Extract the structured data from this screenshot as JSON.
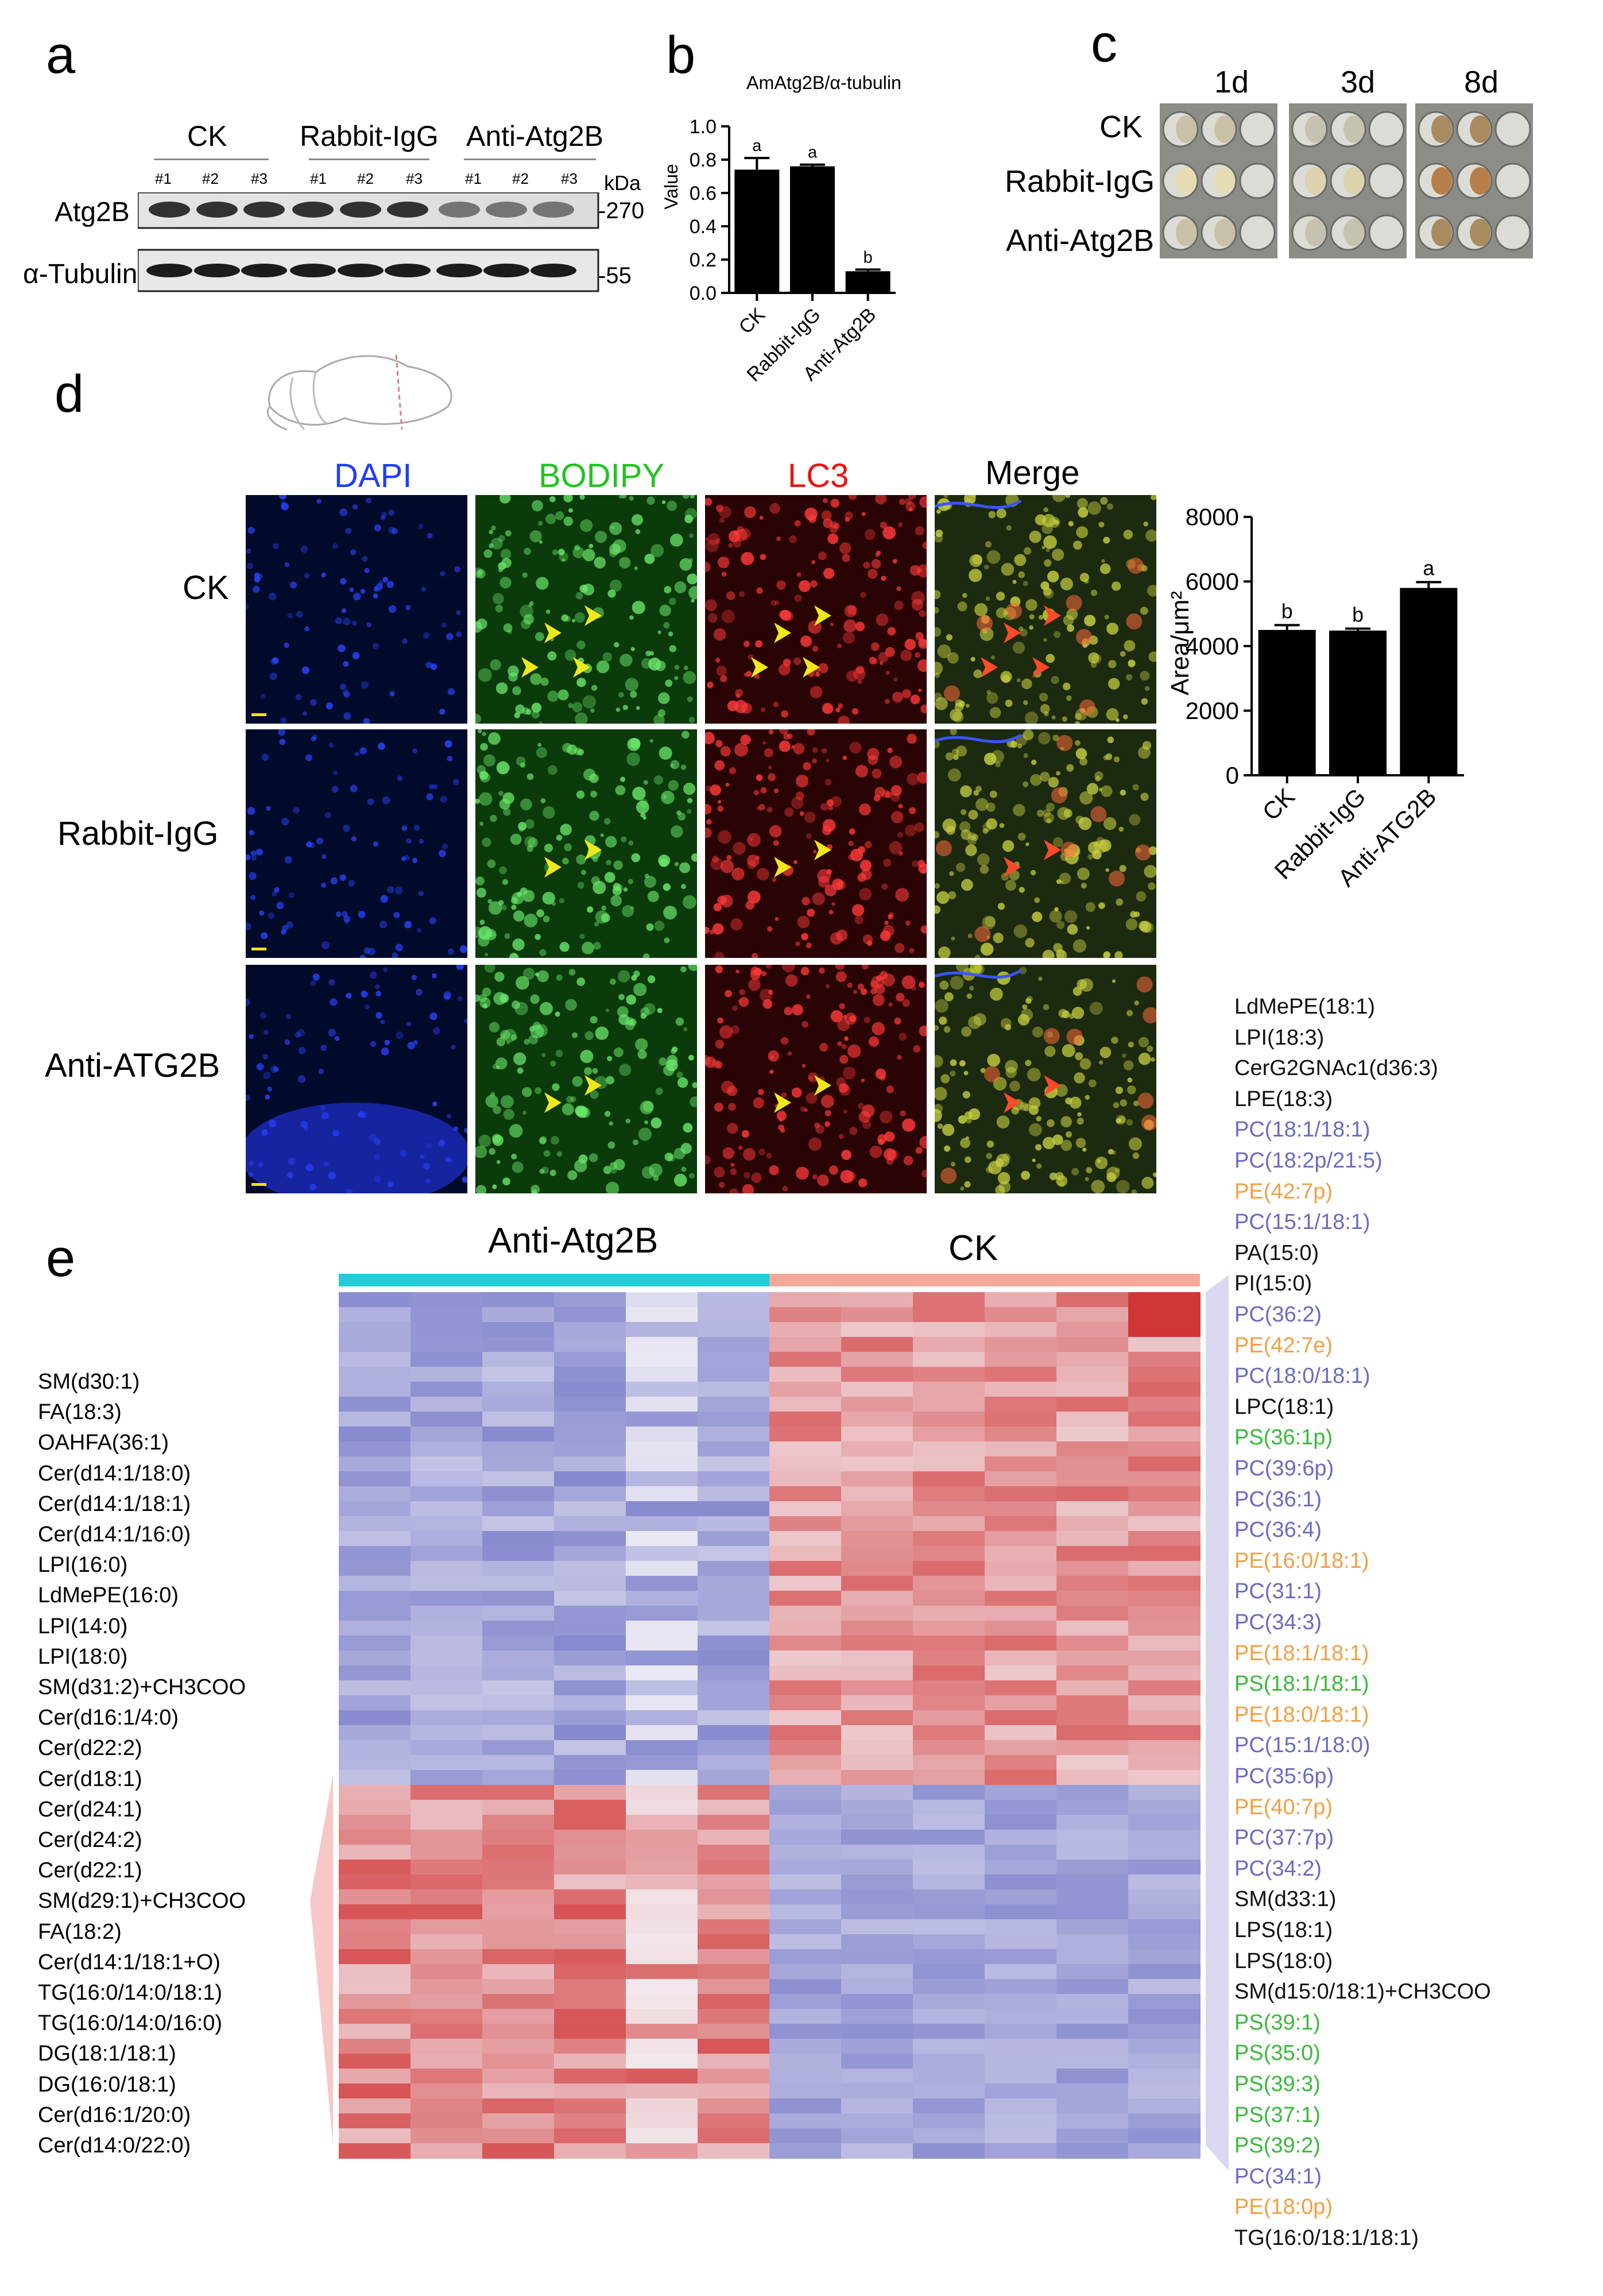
{
  "panels": {
    "a": "a",
    "b": "b",
    "c": "c",
    "d": "d",
    "e": "e"
  },
  "panel_a": {
    "groups": [
      "CK",
      "Rabbit-IgG",
      "Anti-Atg2B"
    ],
    "lanes": [
      "#1",
      "#2",
      "#3",
      "#1",
      "#2",
      "#3",
      "#1",
      "#2",
      "#3"
    ],
    "kda_label": "kDa",
    "rows": [
      {
        "label": "Atg2B",
        "marker": "-270"
      },
      {
        "label": "α-Tubulin",
        "marker": "-55"
      }
    ]
  },
  "chart_data": [
    {
      "type": "bar",
      "title": "AmAtg2B/α-tubulin",
      "ylabel": "Value",
      "xlabel": "",
      "categories": [
        "CK",
        "Rabbit-IgG",
        "Anti-Atg2B"
      ],
      "values": [
        0.74,
        0.76,
        0.13
      ],
      "errors": [
        0.07,
        0.01,
        0.01
      ],
      "significance": [
        "a",
        "a",
        "b"
      ],
      "ylim": [
        0,
        1.0
      ],
      "yticks": [
        "0.0",
        "0.2",
        "0.4",
        "0.6",
        "0.8",
        "1.0"
      ]
    },
    {
      "type": "bar",
      "title": "",
      "ylabel": "Area/μm²",
      "xlabel": "",
      "categories": [
        "CK",
        "Rabbit-IgG",
        "Anti-ATG2B"
      ],
      "values": [
        4500,
        4480,
        5800
      ],
      "errors": [
        150,
        60,
        180
      ],
      "significance": [
        "b",
        "b",
        "a"
      ],
      "ylim": [
        0,
        8000
      ],
      "yticks": [
        "0",
        "2000",
        "4000",
        "6000",
        "8000"
      ]
    },
    {
      "type": "heatmap",
      "title": "",
      "column_groups": [
        "Anti-Atg2B",
        "CK"
      ],
      "columns_per_group": 6,
      "left_labels": [
        "SM(d30:1)",
        "FA(18:3)",
        "OAHFA(36:1)",
        "Cer(d14:1/18:0)",
        "Cer(d14:1/18:1)",
        "Cer(d14:1/16:0)",
        "LPI(16:0)",
        "LdMePE(16:0)",
        "LPI(14:0)",
        "LPI(18:0)",
        "SM(d31:2)+CH3COO",
        "Cer(d16:1/4:0)",
        "Cer(d22:2)",
        "Cer(d18:1)",
        "Cer(d24:1)",
        "Cer(d24:2)",
        "Cer(d22:1)",
        "SM(d29:1)+CH3COO",
        "FA(18:2)",
        "Cer(d14:1/18:1+O)",
        "TG(16:0/14:0/18:1)",
        "TG(16:0/14:0/16:0)",
        "DG(18:1/18:1)",
        "DG(16:0/18:1)",
        "Cer(d16:1/20:0)",
        "Cer(d14:0/22:0)"
      ],
      "right_labels": [
        {
          "text": "LdMePE(18:1)",
          "color": "#111111"
        },
        {
          "text": "LPI(18:3)",
          "color": "#111111"
        },
        {
          "text": "CerG2GNAc1(d36:3)",
          "color": "#111111"
        },
        {
          "text": "LPE(18:3)",
          "color": "#111111"
        },
        {
          "text": "PC(18:1/18:1)",
          "color": "#6b6bc0"
        },
        {
          "text": "PC(18:2p/21:5)",
          "color": "#6b6bc0"
        },
        {
          "text": "PE(42:7p)",
          "color": "#f0a045"
        },
        {
          "text": "PC(15:1/18:1)",
          "color": "#6b6bc0"
        },
        {
          "text": "PA(15:0)",
          "color": "#111111"
        },
        {
          "text": "PI(15:0)",
          "color": "#111111"
        },
        {
          "text": "PC(36:2)",
          "color": "#6b6bc0"
        },
        {
          "text": "PE(42:7e)",
          "color": "#f0a045"
        },
        {
          "text": "PC(18:0/18:1)",
          "color": "#6b6bc0"
        },
        {
          "text": "LPC(18:1)",
          "color": "#111111"
        },
        {
          "text": "PS(36:1p)",
          "color": "#3cb83c"
        },
        {
          "text": "PC(39:6p)",
          "color": "#6b6bc0"
        },
        {
          "text": "PC(36:1)",
          "color": "#6b6bc0"
        },
        {
          "text": "PC(36:4)",
          "color": "#6b6bc0"
        },
        {
          "text": "PE(16:0/18:1)",
          "color": "#f0a045"
        },
        {
          "text": "PC(31:1)",
          "color": "#6b6bc0"
        },
        {
          "text": "PC(34:3)",
          "color": "#6b6bc0"
        },
        {
          "text": "PE(18:1/18:1)",
          "color": "#f0a045"
        },
        {
          "text": "PS(18:1/18:1)",
          "color": "#3cb83c"
        },
        {
          "text": "PE(18:0/18:1)",
          "color": "#f0a045"
        },
        {
          "text": "PC(15:1/18:0)",
          "color": "#6b6bc0"
        },
        {
          "text": "PC(35:6p)",
          "color": "#6b6bc0"
        },
        {
          "text": "PE(40:7p)",
          "color": "#f0a045"
        },
        {
          "text": "PC(37:7p)",
          "color": "#6b6bc0"
        },
        {
          "text": "PC(34:2)",
          "color": "#6b6bc0"
        },
        {
          "text": "SM(d33:1)",
          "color": "#111111"
        },
        {
          "text": "LPS(18:1)",
          "color": "#111111"
        },
        {
          "text": "LPS(18:0)",
          "color": "#111111"
        },
        {
          "text": "SM(d15:0/18:1)+CH3COO",
          "color": "#111111"
        },
        {
          "text": "PS(39:1)",
          "color": "#3cb83c"
        },
        {
          "text": "PS(35:0)",
          "color": "#3cb83c"
        },
        {
          "text": "PS(39:3)",
          "color": "#3cb83c"
        },
        {
          "text": "PS(37:1)",
          "color": "#3cb83c"
        },
        {
          "text": "PS(39:2)",
          "color": "#3cb83c"
        },
        {
          "text": "PC(34:1)",
          "color": "#6b6bc0"
        },
        {
          "text": "PE(18:0p)",
          "color": "#f0a045"
        },
        {
          "text": "TG(16:0/18:1/18:1)",
          "color": "#111111"
        }
      ]
    }
  ],
  "panel_c": {
    "days": [
      "1d",
      "3d",
      "8d"
    ],
    "rows": [
      "CK",
      "Rabbit-IgG",
      "Anti-Atg2B"
    ]
  },
  "panel_d": {
    "channels": [
      {
        "name": "DAPI",
        "color": "#1e3cff"
      },
      {
        "name": "BODIPY",
        "color": "#22c322"
      },
      {
        "name": "LC3",
        "color": "#ee1111"
      },
      {
        "name": "Merge",
        "color": "#000000"
      }
    ],
    "rows": [
      "CK",
      "Rabbit-IgG",
      "Anti-ATG2B"
    ]
  },
  "colors": {
    "group_anti": "#22ccd8",
    "group_ck": "#f4a89a",
    "heat_high": "#cf2c2c",
    "heat_low": "#6b6fc4",
    "heat_mid": "#f4f2f7"
  }
}
